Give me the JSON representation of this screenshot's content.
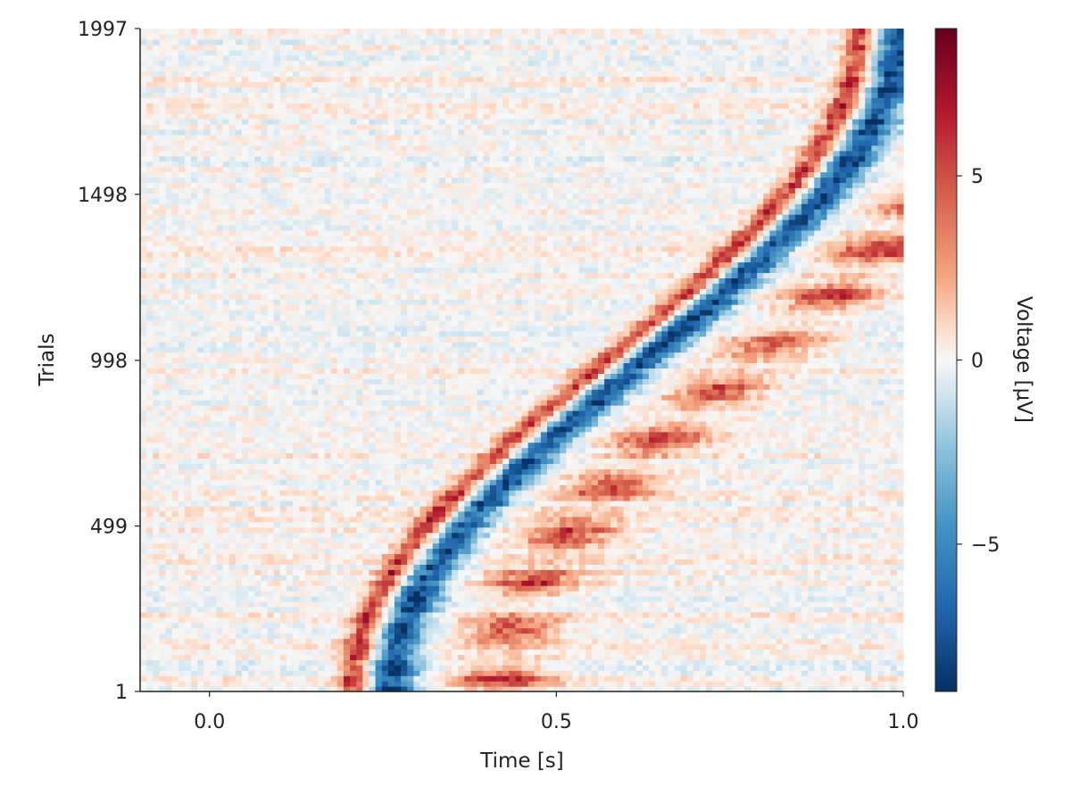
{
  "chart_data": {
    "type": "heatmap",
    "title": "",
    "xlabel": "Time [s]",
    "ylabel": "Trials",
    "xlim": [
      -0.1,
      1.0
    ],
    "ylim": [
      1,
      1997
    ],
    "x_ticks": [
      0.0,
      0.5,
      1.0
    ],
    "x_tick_labels": [
      "0.0",
      "0.5",
      "1.0"
    ],
    "y_ticks": [
      1,
      499,
      998,
      1498,
      1997
    ],
    "y_tick_labels": [
      "1",
      "499",
      "998",
      "1498",
      "1997"
    ],
    "grid": false,
    "colormap": "RdBu_r",
    "colorbar": {
      "label": "Voltage [μV]",
      "range": [
        -9,
        9
      ],
      "ticks": [
        -5,
        0,
        5
      ],
      "tick_labels": [
        "−5",
        "0",
        "5"
      ],
      "low_color": "#053061",
      "mid_color": "#f7f7f7",
      "high_color": "#67001f"
    },
    "description_values": {
      "n_trials": 1997,
      "sorted_by_latency": true,
      "latency_range_s": [
        0.24,
        0.97
      ],
      "positive_peak_offset_s": -0.03,
      "negative_peak_offset_s": 0.02,
      "late_positive_offset_s": 0.18,
      "peak_amplitude_uV": 8.5
    }
  },
  "colors": {
    "axis": "#222222",
    "background": "#ffffff"
  }
}
